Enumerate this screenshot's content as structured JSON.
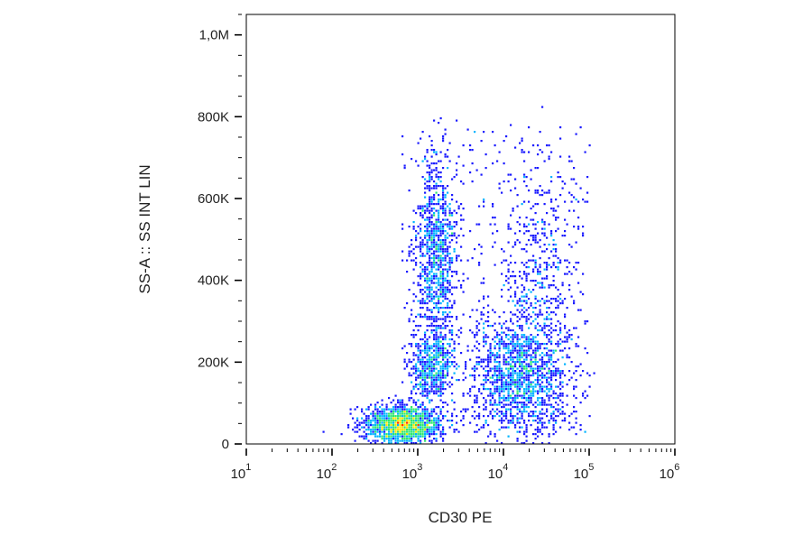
{
  "chart_data": {
    "type": "scatter",
    "subtype": "flow-cytometry density dot plot",
    "xlabel": "CD30 PE",
    "ylabel": "SS-A :: SS INT LIN",
    "x_scale": "log",
    "xlim": [
      10,
      1000000
    ],
    "ylim": [
      0,
      1050000
    ],
    "x_ticks": [
      {
        "value": 10,
        "base": "10",
        "exp": "1"
      },
      {
        "value": 100,
        "base": "10",
        "exp": "2"
      },
      {
        "value": 1000,
        "base": "10",
        "exp": "3"
      },
      {
        "value": 10000,
        "base": "10",
        "exp": "4"
      },
      {
        "value": 100000,
        "base": "10",
        "exp": "5"
      },
      {
        "value": 1000000,
        "base": "10",
        "exp": "6"
      }
    ],
    "y_ticks": [
      {
        "value": 0,
        "label": "0"
      },
      {
        "value": 200000,
        "label": "200K"
      },
      {
        "value": 400000,
        "label": "400K"
      },
      {
        "value": 600000,
        "label": "600K"
      },
      {
        "value": 800000,
        "label": "800K"
      },
      {
        "value": 1000000,
        "label": "1,0M"
      }
    ],
    "populations": [
      {
        "center_x": 650,
        "center_y": 50000,
        "spread_log_x": 0.22,
        "spread_y": 22000,
        "relative_density": 1.0
      },
      {
        "center_x": 1600,
        "center_y": 460000,
        "spread_log_x": 0.12,
        "spread_y": 120000,
        "relative_density": 0.55
      },
      {
        "center_x": 1450,
        "center_y": 190000,
        "spread_log_x": 0.12,
        "spread_y": 40000,
        "relative_density": 0.3
      },
      {
        "center_x": 15000,
        "center_y": 170000,
        "spread_log_x": 0.28,
        "spread_y": 70000,
        "relative_density": 0.8
      },
      {
        "center_x": 25000,
        "center_y": 380000,
        "spread_log_x": 0.2,
        "spread_y": 150000,
        "relative_density": 0.25
      }
    ],
    "color_scale": [
      "#1a1aff",
      "#00b4ff",
      "#2ee86f",
      "#ffe600",
      "#ff3000"
    ],
    "grid": false
  }
}
